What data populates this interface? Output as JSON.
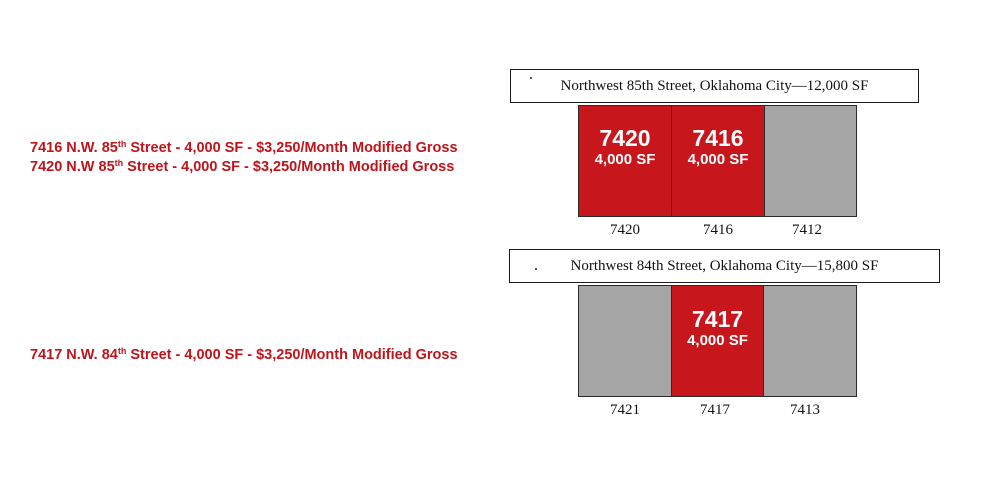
{
  "listings": [
    {
      "prefix": "7416 N.W. 85",
      "sup": "th",
      "suffix": " Street - 4,000 SF - $3,250/Month Modified Gross"
    },
    {
      "prefix": "7420 N.W 85",
      "sup": "th",
      "suffix": " Street - 4,000 SF - $3,250/Month Modified Gross"
    },
    {
      "prefix": "7417 N.W. 84",
      "sup": "th",
      "suffix": " Street - 4,000 SF - $3,250/Month Modified Gross"
    }
  ],
  "buildings": {
    "nw85": {
      "title": "Northwest 85th Street, Oklahoma City—12,000 SF",
      "units": [
        {
          "number": "7420",
          "area": "4,000 SF",
          "label": "7420",
          "status": "leased"
        },
        {
          "number": "7416",
          "area": "4,000 SF",
          "label": "7416",
          "status": "leased"
        },
        {
          "number": "",
          "area": "",
          "label": "7412",
          "status": "vacant"
        }
      ]
    },
    "nw84": {
      "title": "Northwest 84th Street, Oklahoma City—15,800 SF",
      "units": [
        {
          "number": "",
          "area": "",
          "label": "7421",
          "status": "vacant"
        },
        {
          "number": "7417",
          "area": "4,000 SF",
          "label": "7417",
          "status": "leased"
        },
        {
          "number": "",
          "area": "",
          "label": "7413",
          "status": "vacant"
        }
      ]
    }
  },
  "colors": {
    "highlight": "#c8161d",
    "listing_text": "#c0141b",
    "other_unit": "#a5a5a5"
  }
}
